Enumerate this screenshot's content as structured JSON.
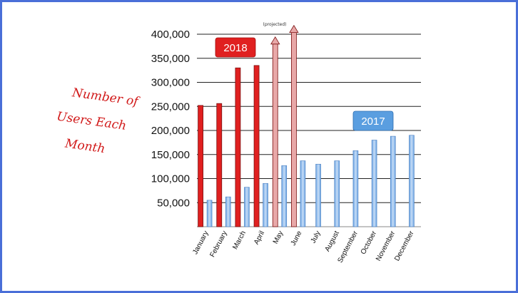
{
  "chart_data": {
    "type": "bar",
    "categories": [
      "January",
      "February",
      "March",
      "April",
      "May",
      "June",
      "July",
      "August",
      "September",
      "October",
      "November",
      "December"
    ],
    "series": [
      {
        "name": "2018",
        "values": [
          252000,
          256000,
          330000,
          335000,
          381000,
          405000,
          null,
          null,
          null,
          null,
          null,
          null
        ],
        "projected": [
          false,
          false,
          false,
          false,
          true,
          true
        ]
      },
      {
        "name": "2017",
        "values": [
          55000,
          62000,
          82000,
          90000,
          127000,
          137000,
          130000,
          137000,
          158000,
          180000,
          188000,
          190000
        ]
      }
    ],
    "ylabel": "Number of Users Each Month",
    "yticks": [
      "50,000",
      "100,000",
      "150,000",
      "200,000",
      "250,000",
      "300,000",
      "350,000",
      "400,000"
    ],
    "ylim": [
      0,
      400000
    ],
    "annotation": "(projected)",
    "grid": true,
    "legend": [
      {
        "label": "2018",
        "placement": "top-left"
      },
      {
        "label": "2017",
        "placement": "right"
      }
    ]
  },
  "colors": {
    "series_2018": "#e02020",
    "series_2018_projected": "#e8a8a8",
    "series_2017": "#8fb8ea",
    "border": "#4a6fd8"
  }
}
